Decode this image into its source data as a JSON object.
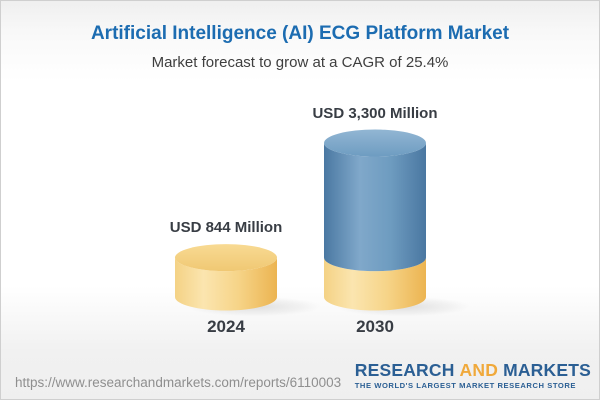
{
  "header": {
    "title": "Artificial Intelligence (AI) ECG Platform Market",
    "subtitle": "Market forecast to grow at a CAGR of 25.4%"
  },
  "chart_data": {
    "type": "bar",
    "variant": "3d-cylinder",
    "categories": [
      "2024",
      "2030"
    ],
    "values": [
      844,
      3300
    ],
    "value_labels": [
      "USD 844 Million",
      "USD 3,300 Million"
    ],
    "unit": "USD Million",
    "cagr": "25.4%",
    "legend": "none",
    "layout_hint": "2030 cylinder is stacked: yellow base equals 2024 value, blue segment is growth",
    "colors": {
      "base_segment_yellow": "#f3cd7e",
      "growth_segment_blue": "#5b86ad"
    }
  },
  "footer": {
    "url": "https://www.researchandmarkets.com/reports/6110003",
    "logo": {
      "word1": "RESEARCH",
      "word2": "AND",
      "word3": "MARKETS",
      "tagline": "THE WORLD'S LARGEST MARKET RESEARCH STORE",
      "blue": "#2b5f94",
      "gold": "#f0a93b"
    }
  },
  "colors": {
    "title_blue": "#1c6cb1",
    "label_dark": "#383d44"
  }
}
